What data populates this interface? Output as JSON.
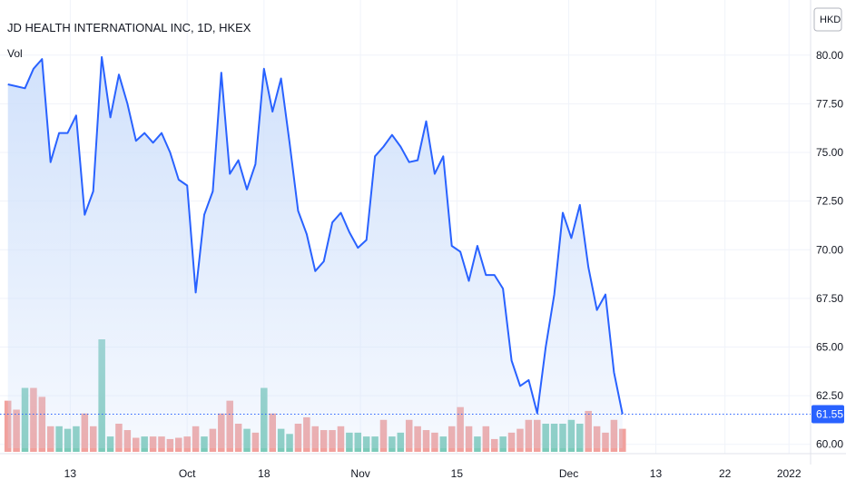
{
  "header": {
    "title": "JD HEALTH INTERNATIONAL INC, 1D, HKEX",
    "volume_label": "Vol"
  },
  "currency": {
    "label": "HKD"
  },
  "last_price": {
    "label": "61.55",
    "value": 61.55,
    "color": "#2962ff"
  },
  "colors": {
    "line": "#2962ff",
    "area_top": "#cfe0fb",
    "volume_up": "#7ccab9",
    "volume_down": "#f1a19d",
    "grid": "#f0f3fa"
  },
  "chart_data": {
    "type": "area",
    "yticks": [
      "80.00",
      "77.50",
      "75.00",
      "72.50",
      "70.00",
      "67.50",
      "65.00",
      "62.50",
      "60.00"
    ],
    "ylim": [
      59.8,
      80.55
    ],
    "xlabels": [
      {
        "label": "13",
        "index": 7.3
      },
      {
        "label": "Oct",
        "index": 21
      },
      {
        "label": "18",
        "index": 30
      },
      {
        "label": "Nov",
        "index": 41.3
      },
      {
        "label": "15",
        "index": 52.6
      },
      {
        "label": "Dec",
        "index": 65.7
      },
      {
        "label": "13",
        "index": 75.9
      },
      {
        "label": "22",
        "index": 84
      },
      {
        "label": "2022",
        "index": 91.5
      }
    ],
    "xlim": [
      -0.5,
      93.5
    ],
    "price": [
      78.5,
      78.4,
      78.3,
      79.3,
      79.8,
      74.5,
      76.0,
      76.0,
      76.9,
      71.8,
      73.0,
      79.9,
      76.8,
      79.0,
      77.5,
      75.6,
      76.0,
      75.5,
      76.0,
      75.0,
      73.6,
      73.3,
      67.8,
      71.8,
      73.0,
      79.1,
      73.9,
      74.6,
      73.1,
      74.4,
      79.3,
      77.1,
      78.8,
      75.5,
      72.0,
      70.8,
      68.9,
      69.4,
      71.4,
      71.9,
      70.9,
      70.1,
      70.5,
      74.8,
      75.3,
      75.9,
      75.3,
      74.5,
      74.6,
      76.6,
      73.9,
      74.8,
      70.2,
      69.9,
      68.4,
      70.2,
      68.7,
      68.7,
      68.0,
      64.3,
      63.0,
      63.3,
      61.6,
      65.0,
      67.7,
      71.9,
      70.6,
      72.3,
      69.1,
      66.9,
      67.7,
      63.7,
      61.55
    ],
    "volume": [
      {
        "v": 40,
        "up": false
      },
      {
        "v": 33,
        "up": false
      },
      {
        "v": 50,
        "up": true
      },
      {
        "v": 50,
        "up": false
      },
      {
        "v": 43,
        "up": false
      },
      {
        "v": 20,
        "up": false
      },
      {
        "v": 20,
        "up": true
      },
      {
        "v": 18,
        "up": true
      },
      {
        "v": 20,
        "up": true
      },
      {
        "v": 30,
        "up": false
      },
      {
        "v": 20,
        "up": false
      },
      {
        "v": 88,
        "up": true
      },
      {
        "v": 12,
        "up": true
      },
      {
        "v": 22,
        "up": false
      },
      {
        "v": 17,
        "up": false
      },
      {
        "v": 11,
        "up": false
      },
      {
        "v": 12,
        "up": true
      },
      {
        "v": 12,
        "up": false
      },
      {
        "v": 12,
        "up": false
      },
      {
        "v": 10,
        "up": false
      },
      {
        "v": 11,
        "up": false
      },
      {
        "v": 12,
        "up": false
      },
      {
        "v": 20,
        "up": false
      },
      {
        "v": 12,
        "up": true
      },
      {
        "v": 18,
        "up": false
      },
      {
        "v": 30,
        "up": false
      },
      {
        "v": 40,
        "up": false
      },
      {
        "v": 22,
        "up": false
      },
      {
        "v": 18,
        "up": true
      },
      {
        "v": 15,
        "up": false
      },
      {
        "v": 50,
        "up": true
      },
      {
        "v": 30,
        "up": false
      },
      {
        "v": 18,
        "up": true
      },
      {
        "v": 14,
        "up": true
      },
      {
        "v": 22,
        "up": false
      },
      {
        "v": 27,
        "up": false
      },
      {
        "v": 20,
        "up": false
      },
      {
        "v": 17,
        "up": false
      },
      {
        "v": 17,
        "up": false
      },
      {
        "v": 20,
        "up": false
      },
      {
        "v": 15,
        "up": true
      },
      {
        "v": 15,
        "up": true
      },
      {
        "v": 12,
        "up": true
      },
      {
        "v": 12,
        "up": true
      },
      {
        "v": 25,
        "up": false
      },
      {
        "v": 12,
        "up": true
      },
      {
        "v": 15,
        "up": true
      },
      {
        "v": 25,
        "up": false
      },
      {
        "v": 20,
        "up": false
      },
      {
        "v": 17,
        "up": false
      },
      {
        "v": 15,
        "up": false
      },
      {
        "v": 12,
        "up": true
      },
      {
        "v": 20,
        "up": false
      },
      {
        "v": 35,
        "up": false
      },
      {
        "v": 20,
        "up": false
      },
      {
        "v": 12,
        "up": true
      },
      {
        "v": 20,
        "up": false
      },
      {
        "v": 10,
        "up": false
      },
      {
        "v": 12,
        "up": true
      },
      {
        "v": 15,
        "up": false
      },
      {
        "v": 18,
        "up": false
      },
      {
        "v": 25,
        "up": false
      },
      {
        "v": 25,
        "up": false
      },
      {
        "v": 22,
        "up": true
      },
      {
        "v": 22,
        "up": true
      },
      {
        "v": 22,
        "up": true
      },
      {
        "v": 25,
        "up": true
      },
      {
        "v": 22,
        "up": true
      },
      {
        "v": 32,
        "up": false
      },
      {
        "v": 20,
        "up": false
      },
      {
        "v": 15,
        "up": false
      },
      {
        "v": 25,
        "up": false
      },
      {
        "v": 18,
        "up": false
      }
    ],
    "volume_max": 88,
    "grid": true
  }
}
